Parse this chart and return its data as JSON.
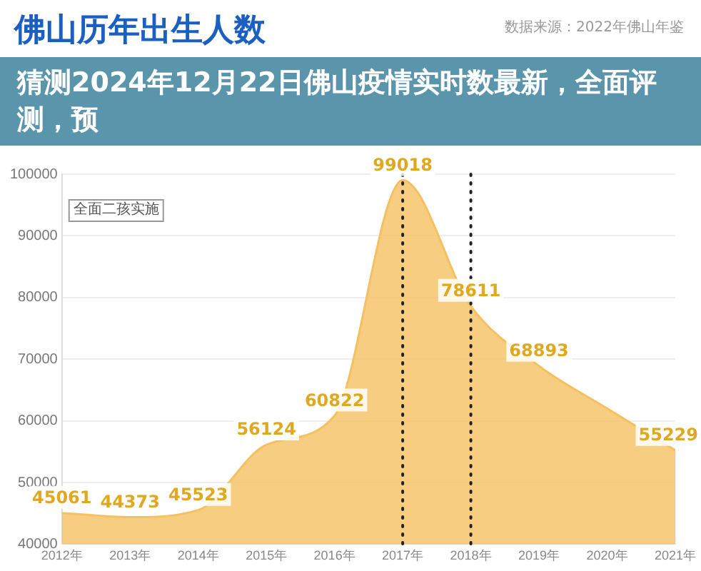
{
  "chart_data": {
    "type": "area",
    "title": "佛山历年出生人数",
    "subtitle": "猜测2024年12月22日佛山疫情实时数最新，全面评测，预",
    "annotations": [
      "数据来源：2022年佛山年鉴",
      "全面二孩实施"
    ],
    "x": [
      2012,
      2013,
      2014,
      2015,
      2016,
      2017,
      2018,
      2019,
      2020,
      2021
    ],
    "series": [
      {
        "color": "#f5c062",
        "values": [
          45061,
          44373,
          45523,
          56124,
          60822,
          99018,
          78611,
          68893,
          62000,
          55229
        ],
        "value_labels": [
          "45061",
          "44373",
          "45523",
          "56124",
          "60822",
          "99018",
          "78611",
          "68893",
          null,
          "55229"
        ]
      }
    ],
    "xlim": [
      2012,
      2021
    ],
    "xticks": [
      {
        "value": 2012,
        "label": "2012年"
      },
      {
        "value": 2013,
        "label": "2013年"
      },
      {
        "value": 2014,
        "label": "2014年"
      },
      {
        "value": 2015,
        "label": "2015年"
      },
      {
        "value": 2016,
        "label": "2016年"
      },
      {
        "value": 2017,
        "label": "2017年"
      },
      {
        "value": 2018,
        "label": "2018年"
      },
      {
        "value": 2019,
        "label": "2019年"
      },
      {
        "value": 2020,
        "label": "2020年"
      },
      {
        "value": 2021,
        "label": "2021年"
      }
    ],
    "ylim": [
      40000,
      100000
    ],
    "yticks": [
      40000,
      50000,
      60000,
      70000,
      80000,
      90000,
      100000
    ],
    "ref_lines": [
      {
        "axis": "x",
        "value": 2017,
        "line_style": "dotted",
        "color": "#222222"
      },
      {
        "axis": "x",
        "value": 2018,
        "line_style": "dotted",
        "color": "#222222"
      }
    ],
    "grid": "y",
    "legend": false,
    "marker": "none"
  }
}
